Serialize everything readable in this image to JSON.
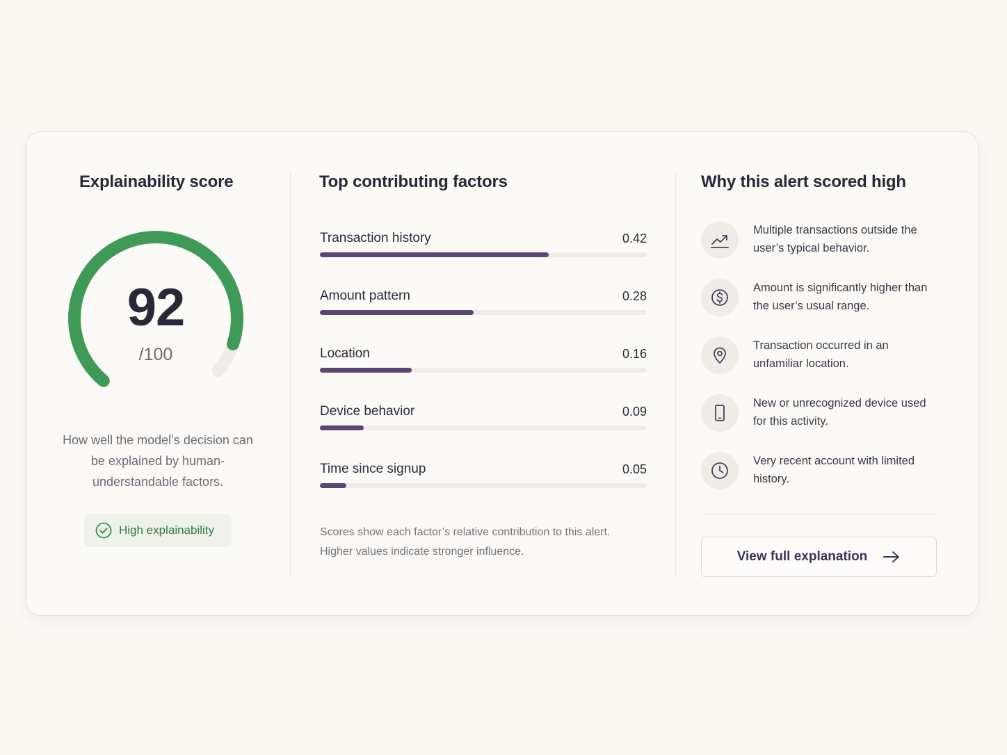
{
  "score_panel": {
    "title": "Explainability score",
    "score": "92",
    "score_value": 92,
    "score_max": "/100",
    "description": "How well the model’s decision can be explained by human-understandable factors.",
    "badge": {
      "label": "High explainability",
      "icon": "check-circle-icon"
    }
  },
  "factors_panel": {
    "title": "Top contributing factors",
    "factors": [
      {
        "name": "Transaction history",
        "value": "0.42",
        "fill": 0.7
      },
      {
        "name": "Amount pattern",
        "value": "0.28",
        "fill": 0.47
      },
      {
        "name": "Location",
        "value": "0.16",
        "fill": 0.28
      },
      {
        "name": "Device behavior",
        "value": "0.09",
        "fill": 0.135
      },
      {
        "name": "Time since signup",
        "value": "0.05",
        "fill": 0.08
      }
    ],
    "note": "Scores show each factor’s relative contribution to this alert. Higher values indicate stronger influence."
  },
  "reasons_panel": {
    "title": "Why this alert scored high",
    "reasons": [
      {
        "icon": "trend-up-icon",
        "text": "Multiple transactions outside the user’s typical behavior."
      },
      {
        "icon": "dollar-circle-icon",
        "text": "Amount is significantly higher than the user’s usual range."
      },
      {
        "icon": "location-pin-icon",
        "text": "Transaction occurred in an unfamiliar location."
      },
      {
        "icon": "mobile-device-icon",
        "text": "New or unrecognized device used for this activity."
      },
      {
        "icon": "clock-icon",
        "text": "Very recent account with limited history."
      }
    ],
    "button": {
      "label": "View full explanation",
      "icon": "arrow-right-icon"
    }
  },
  "colors": {
    "gauge": "#3f9a57",
    "gauge_track": "#efecea",
    "bar_fill": "#5a4673",
    "badge_text": "#2f7a3f"
  }
}
